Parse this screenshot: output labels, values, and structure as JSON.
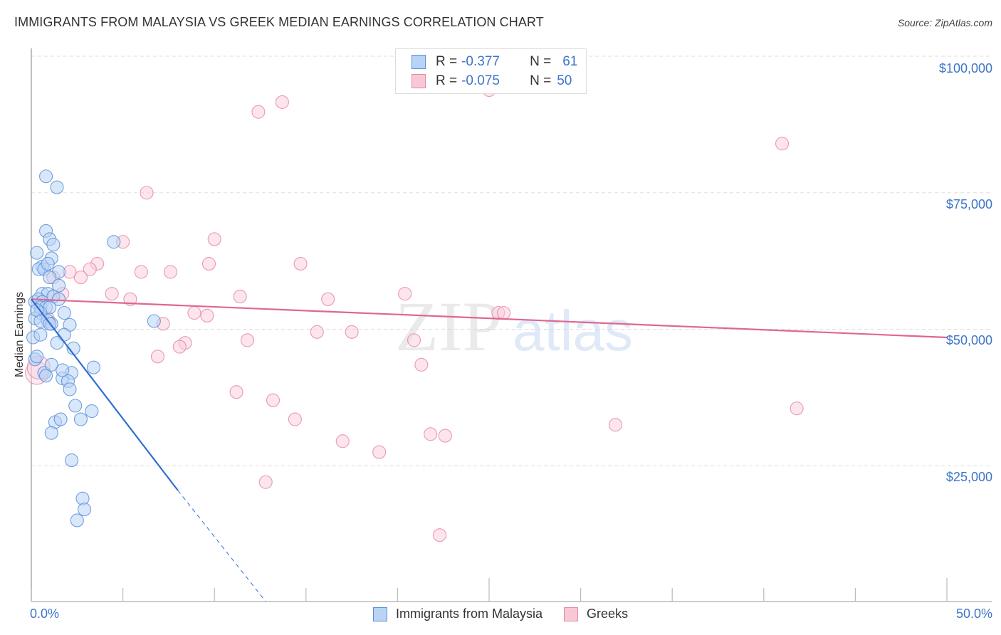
{
  "header": {
    "title": "IMMIGRANTS FROM MALAYSIA VS GREEK MEDIAN EARNINGS CORRELATION CHART",
    "source": "Source: ZipAtlas.com"
  },
  "legend": {
    "series": [
      {
        "name": "Immigrants from Malaysia",
        "r_label": "R =",
        "r_value": "-0.377",
        "n_label": "N =",
        "n_value": "61",
        "fill": "#b9d3f5",
        "stroke": "#5b8fd8"
      },
      {
        "name": "Greeks",
        "r_label": "R =",
        "r_value": "-0.075",
        "n_label": "N =",
        "n_value": "50",
        "fill": "#f9c8d6",
        "stroke": "#e58aa6"
      }
    ]
  },
  "axes": {
    "ylabel": "Median Earnings",
    "yticks": [
      "$100,000",
      "$75,000",
      "$50,000",
      "$25,000"
    ],
    "xtick_left": "0.0%",
    "xtick_right": "50.0%"
  },
  "watermark": {
    "zip": "ZIP",
    "atlas": "atlas"
  },
  "colors": {
    "blue_fill": "#b9d3f5",
    "blue_stroke": "#5b8fd8",
    "blue_line": "#2f6fd0",
    "pink_fill": "#f9d0dd",
    "pink_stroke": "#e58aa6",
    "pink_line": "#e06690",
    "tick_label": "#3d74c9",
    "grid": "#dddddd"
  },
  "chart_data": {
    "type": "scatter",
    "title": "IMMIGRANTS FROM MALAYSIA VS GREEK MEDIAN EARNINGS CORRELATION CHART",
    "xlabel": "",
    "ylabel": "Median Earnings",
    "xlim": [
      0,
      50
    ],
    "ylim": [
      0,
      102000
    ],
    "x_tick_labels": [
      "0.0%",
      "50.0%"
    ],
    "y_tick_labels": [
      "$25,000",
      "$50,000",
      "$75,000",
      "$100,000"
    ],
    "y_ticks": [
      25000,
      50000,
      75000,
      100000
    ],
    "grid": true,
    "legend_position": "top-center",
    "series": [
      {
        "name": "Immigrants from Malaysia",
        "color": "#5b8fd8",
        "R": -0.377,
        "N": 61,
        "trend": {
          "x0": 0.0,
          "y0": 55500,
          "x1": 8.0,
          "y1": 20500,
          "dashed_to": {
            "x": 12.8,
            "y": 0
          }
        },
        "points": [
          [
            0.8,
            78000
          ],
          [
            1.4,
            76000
          ],
          [
            0.8,
            68000
          ],
          [
            1.0,
            66500
          ],
          [
            1.2,
            65500
          ],
          [
            4.5,
            66000
          ],
          [
            0.3,
            64000
          ],
          [
            1.1,
            63000
          ],
          [
            0.6,
            61500
          ],
          [
            0.4,
            61000
          ],
          [
            0.7,
            61000
          ],
          [
            1.5,
            60500
          ],
          [
            1.0,
            59500
          ],
          [
            1.5,
            58000
          ],
          [
            0.6,
            56500
          ],
          [
            0.9,
            56500
          ],
          [
            1.2,
            56000
          ],
          [
            0.2,
            55000
          ],
          [
            0.4,
            55500
          ],
          [
            0.6,
            55000
          ],
          [
            1.5,
            55500
          ],
          [
            0.5,
            54000
          ],
          [
            0.8,
            54000
          ],
          [
            1.0,
            54000
          ],
          [
            0.5,
            53000
          ],
          [
            1.8,
            53000
          ],
          [
            0.2,
            52000
          ],
          [
            0.9,
            51500
          ],
          [
            1.1,
            51000
          ],
          [
            2.1,
            50800
          ],
          [
            0.1,
            48500
          ],
          [
            0.5,
            49000
          ],
          [
            1.8,
            49000
          ],
          [
            1.4,
            47500
          ],
          [
            2.3,
            46500
          ],
          [
            0.2,
            44500
          ],
          [
            0.7,
            42000
          ],
          [
            0.8,
            41500
          ],
          [
            1.7,
            41000
          ],
          [
            2.2,
            42000
          ],
          [
            2.0,
            40500
          ],
          [
            3.4,
            43000
          ],
          [
            1.1,
            43500
          ],
          [
            1.7,
            42500
          ],
          [
            2.1,
            39000
          ],
          [
            2.4,
            36000
          ],
          [
            2.7,
            33500
          ],
          [
            3.3,
            35000
          ],
          [
            1.3,
            33000
          ],
          [
            1.1,
            31000
          ],
          [
            1.6,
            33500
          ],
          [
            2.2,
            26000
          ],
          [
            2.8,
            19000
          ],
          [
            2.9,
            17000
          ],
          [
            2.5,
            15000
          ],
          [
            6.7,
            51500
          ],
          [
            0.3,
            53500
          ],
          [
            0.9,
            62000
          ],
          [
            0.5,
            51500
          ],
          [
            1.0,
            51000
          ],
          [
            0.3,
            45000
          ]
        ]
      },
      {
        "name": "Greeks",
        "color": "#e58aa6",
        "R": -0.075,
        "N": 50,
        "trend": {
          "x0": 0.0,
          "y0": 55500,
          "x1": 50.0,
          "y1": 48500
        },
        "points": [
          [
            12.4,
            89800
          ],
          [
            13.7,
            91600
          ],
          [
            25.0,
            93800
          ],
          [
            41.0,
            84000
          ],
          [
            6.3,
            75000
          ],
          [
            10.0,
            66500
          ],
          [
            5.0,
            66000
          ],
          [
            9.7,
            62000
          ],
          [
            14.7,
            62000
          ],
          [
            3.6,
            62000
          ],
          [
            3.2,
            61000
          ],
          [
            6.0,
            60500
          ],
          [
            7.6,
            60500
          ],
          [
            2.1,
            60500
          ],
          [
            2.7,
            59500
          ],
          [
            4.4,
            56500
          ],
          [
            11.4,
            56000
          ],
          [
            16.2,
            55500
          ],
          [
            20.4,
            56500
          ],
          [
            5.4,
            55500
          ],
          [
            1.2,
            56000
          ],
          [
            8.9,
            53000
          ],
          [
            9.6,
            52500
          ],
          [
            25.5,
            53000
          ],
          [
            25.8,
            53000
          ],
          [
            7.2,
            51000
          ],
          [
            15.6,
            49500
          ],
          [
            17.5,
            49500
          ],
          [
            11.8,
            48000
          ],
          [
            20.9,
            48000
          ],
          [
            8.4,
            47500
          ],
          [
            8.1,
            46800
          ],
          [
            6.9,
            45000
          ],
          [
            21.3,
            43500
          ],
          [
            0.3,
            42000
          ],
          [
            11.2,
            38500
          ],
          [
            13.2,
            37000
          ],
          [
            14.4,
            33500
          ],
          [
            31.9,
            32500
          ],
          [
            41.8,
            35500
          ],
          [
            21.8,
            30800
          ],
          [
            22.6,
            30500
          ],
          [
            17.0,
            29500
          ],
          [
            19.0,
            27500
          ],
          [
            12.8,
            22000
          ],
          [
            22.3,
            12300
          ],
          [
            1.2,
            59500
          ],
          [
            0.9,
            52000
          ],
          [
            0.4,
            43000
          ],
          [
            1.7,
            56500
          ]
        ]
      }
    ]
  }
}
